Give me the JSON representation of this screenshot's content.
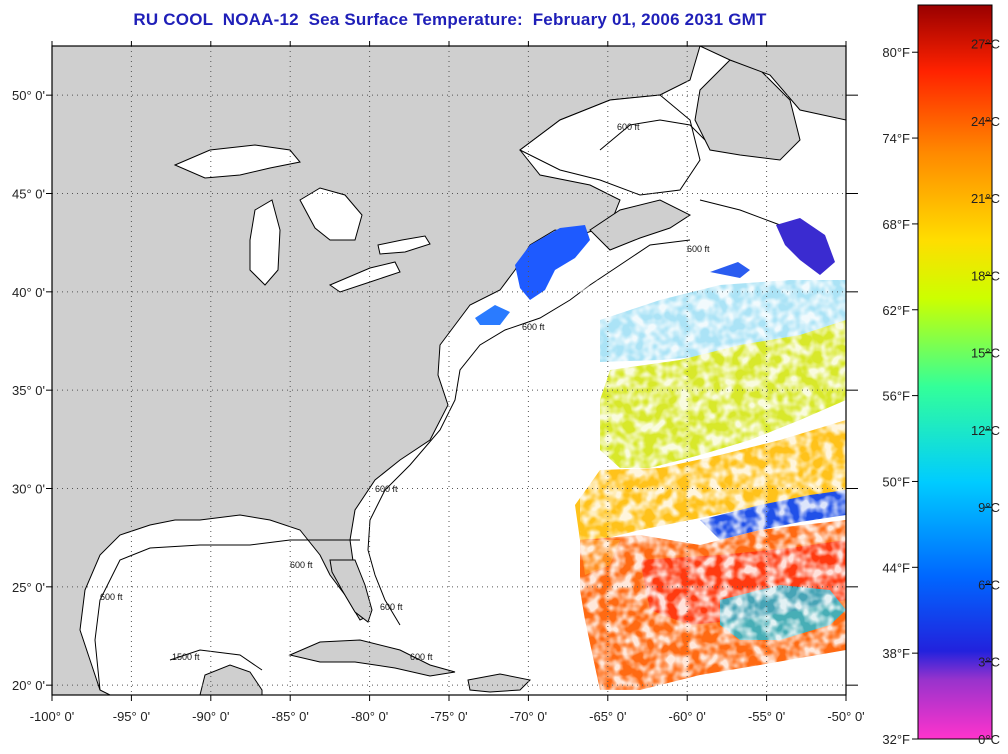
{
  "title": "RU COOL  NOAA-12  Sea Surface Temperature:  February 01, 2006 2031 GMT",
  "map": {
    "lon_min": -100,
    "lon_max": -50,
    "lat_min": 19.5,
    "lat_max": 52.5,
    "lon_ticks": [
      "-100° 0'",
      "-95° 0'",
      "-90° 0'",
      "-85° 0'",
      "-80° 0'",
      "-75° 0'",
      "-70° 0'",
      "-65° 0'",
      "-60° 0'",
      "-55° 0'",
      "-50° 0'"
    ],
    "lat_ticks": [
      "20° 0'",
      "25° 0'",
      "30° 0'",
      "35° 0'",
      "40° 0'",
      "45° 0'",
      "50° 0'"
    ],
    "isobath_label": "600 ft",
    "isobath_label_alt": "1500 ft",
    "colors": {
      "land": "#cfcfcf",
      "ocean": "#ffffff",
      "coast": "#000000",
      "grid": "#555555"
    }
  },
  "colorbar": {
    "fahrenheit_labels": [
      "80°F",
      "74°F",
      "68°F",
      "62°F",
      "56°F",
      "50°F",
      "44°F",
      "38°F",
      "32°F"
    ],
    "celsius_labels": [
      "27°C",
      "24°C",
      "21°C",
      "18°C",
      "15°C",
      "12°C",
      "9°C",
      "6°C",
      "3°C",
      "0°C"
    ],
    "colors": [
      "#ff33cc",
      "#9933cc",
      "#2222dd",
      "#0066ff",
      "#00ccff",
      "#33ff99",
      "#ccff00",
      "#ffdd00",
      "#ff8800",
      "#ff2200",
      "#990000"
    ]
  }
}
